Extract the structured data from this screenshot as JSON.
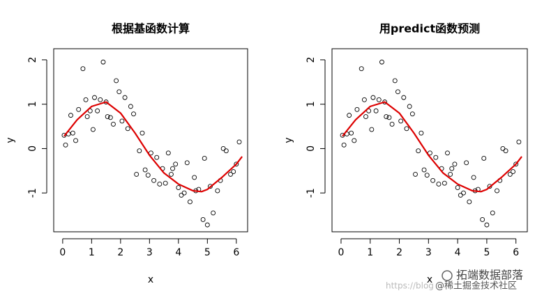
{
  "chart_data": [
    {
      "type": "scatter",
      "title": "根据基函数计算",
      "xlabel": "x",
      "ylabel": "y",
      "xlim": [
        -0.31,
        6.39
      ],
      "ylim": [
        -1.875,
        2.25
      ],
      "xticks": [
        0,
        1,
        2,
        3,
        4,
        5,
        6
      ],
      "yticks": [
        2,
        1,
        0,
        -1
      ],
      "points": {
        "color": "#000000",
        "x": [
          0.05,
          0.1,
          0.2,
          0.28,
          0.35,
          0.45,
          0.55,
          0.7,
          0.8,
          0.85,
          0.95,
          1.05,
          1.1,
          1.2,
          1.3,
          1.4,
          1.5,
          1.55,
          1.65,
          1.75,
          1.85,
          1.95,
          2.05,
          2.15,
          2.25,
          2.35,
          2.45,
          2.55,
          2.65,
          2.75,
          2.85,
          2.95,
          3.05,
          3.15,
          3.25,
          3.35,
          3.45,
          3.55,
          3.65,
          3.75,
          3.8,
          3.9,
          4.0,
          4.1,
          4.2,
          4.3,
          4.4,
          4.55,
          4.6,
          4.7,
          4.85,
          4.9,
          5.0,
          5.1,
          5.2,
          5.35,
          5.45,
          5.55,
          5.65,
          5.8,
          5.9,
          6.0,
          6.1
        ],
        "y": [
          0.3,
          0.08,
          0.33,
          0.75,
          0.35,
          0.18,
          0.88,
          1.8,
          1.1,
          0.72,
          0.85,
          0.43,
          1.15,
          0.85,
          1.1,
          1.95,
          1.05,
          0.72,
          0.7,
          0.55,
          1.53,
          1.28,
          0.62,
          1.15,
          0.45,
          0.95,
          0.78,
          -0.58,
          -0.05,
          0.35,
          -0.48,
          -0.6,
          -0.1,
          -0.72,
          -0.2,
          -0.8,
          -0.45,
          -0.78,
          -0.1,
          -0.58,
          -0.45,
          -0.35,
          -0.88,
          -1.05,
          -1.0,
          -0.32,
          -1.2,
          -0.65,
          -0.95,
          -0.92,
          -1.6,
          -0.22,
          -1.72,
          -0.85,
          -1.45,
          -0.95,
          -0.72,
          0.0,
          -0.05,
          -0.58,
          -0.52,
          -0.35,
          0.15
        ]
      },
      "fit": {
        "color": "#dd0000",
        "x": [
          0.05,
          0.5,
          1.0,
          1.5,
          2.0,
          2.5,
          3.0,
          3.5,
          4.0,
          4.5,
          4.8,
          5.0,
          5.5,
          6.0,
          6.2
        ],
        "values": [
          0.28,
          0.65,
          0.95,
          1.05,
          0.8,
          0.35,
          -0.15,
          -0.55,
          -0.8,
          -0.95,
          -0.97,
          -0.92,
          -0.65,
          -0.35,
          -0.18
        ]
      }
    },
    {
      "type": "scatter",
      "title": "用predict函数预测",
      "xlabel": "x",
      "ylabel": "y",
      "xlim": [
        -0.31,
        6.39
      ],
      "ylim": [
        -1.875,
        2.25
      ],
      "xticks": [
        0,
        1,
        2,
        3,
        4,
        5,
        6
      ],
      "yticks": [
        2,
        1,
        0,
        -1
      ],
      "points": {
        "color": "#000000",
        "x": [
          0.05,
          0.1,
          0.2,
          0.28,
          0.35,
          0.45,
          0.55,
          0.7,
          0.8,
          0.85,
          0.95,
          1.05,
          1.1,
          1.2,
          1.3,
          1.4,
          1.5,
          1.55,
          1.65,
          1.75,
          1.85,
          1.95,
          2.05,
          2.15,
          2.25,
          2.35,
          2.45,
          2.55,
          2.65,
          2.75,
          2.85,
          2.95,
          3.05,
          3.15,
          3.25,
          3.35,
          3.45,
          3.55,
          3.65,
          3.75,
          3.8,
          3.9,
          4.0,
          4.1,
          4.2,
          4.3,
          4.4,
          4.55,
          4.6,
          4.7,
          4.85,
          4.9,
          5.0,
          5.1,
          5.2,
          5.35,
          5.45,
          5.55,
          5.65,
          5.8,
          5.9,
          6.0,
          6.1
        ],
        "y": [
          0.3,
          0.08,
          0.33,
          0.75,
          0.35,
          0.18,
          0.88,
          1.8,
          1.1,
          0.72,
          0.85,
          0.43,
          1.15,
          0.85,
          1.1,
          1.95,
          1.05,
          0.72,
          0.7,
          0.55,
          1.53,
          1.28,
          0.62,
          1.15,
          0.45,
          0.95,
          0.78,
          -0.58,
          -0.05,
          0.35,
          -0.48,
          -0.6,
          -0.1,
          -0.72,
          -0.2,
          -0.8,
          -0.45,
          -0.78,
          -0.1,
          -0.58,
          -0.45,
          -0.35,
          -0.88,
          -1.05,
          -1.0,
          -0.32,
          -1.2,
          -0.65,
          -0.95,
          -0.92,
          -1.6,
          -0.22,
          -1.72,
          -0.85,
          -1.45,
          -0.95,
          -0.72,
          0.0,
          -0.05,
          -0.58,
          -0.52,
          -0.35,
          0.15
        ]
      },
      "fit": {
        "color": "#dd0000",
        "x": [
          0.05,
          0.5,
          1.0,
          1.5,
          2.0,
          2.5,
          3.0,
          3.5,
          4.0,
          4.5,
          4.8,
          5.0,
          5.5,
          6.0,
          6.2
        ],
        "values": [
          0.28,
          0.65,
          0.95,
          1.05,
          0.8,
          0.35,
          -0.15,
          -0.55,
          -0.8,
          -0.95,
          -0.97,
          -0.92,
          -0.65,
          -0.35,
          -0.18
        ]
      }
    }
  ],
  "watermark": {
    "brand": "拓端数据部落",
    "site": "@稀土掘金技术社区",
    "url": "https://blog"
  }
}
